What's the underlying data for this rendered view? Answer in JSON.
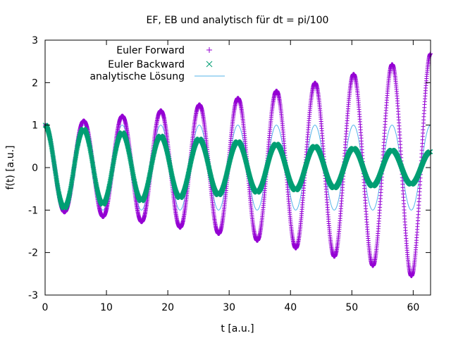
{
  "chart_data": {
    "type": "scatter",
    "title": "EF, EB und analytisch für dt = pi/100",
    "xlabel": "t [a.u.]",
    "ylabel": "f(t) [a.u.]",
    "xlim": [
      0,
      62.83
    ],
    "ylim": [
      -3,
      3
    ],
    "x_ticks": [
      0,
      10,
      20,
      30,
      40,
      50,
      60
    ],
    "x_tick_labels": [
      "0",
      "10",
      "20",
      "30",
      "40",
      "50",
      "60"
    ],
    "y_ticks": [
      -3,
      -2,
      -1,
      0,
      1,
      2,
      3
    ],
    "y_tick_labels": [
      "-3",
      "-2",
      "-1",
      "0",
      "1",
      "2",
      "3"
    ],
    "grid": false,
    "legend_position": "top-center",
    "dt": 0.0314159,
    "series": [
      {
        "name": "Euler Forward",
        "marker": "+",
        "color": "#9400d3",
        "model": "f(t)=cos(t)·(1+dt²)^(t/(2·dt))",
        "peaks": [
          {
            "t": 0,
            "f": 1.0
          },
          {
            "t": 6.28,
            "f": 1.1
          },
          {
            "t": 12.57,
            "f": 1.21
          },
          {
            "t": 18.85,
            "f": 1.34
          },
          {
            "t": 25.13,
            "f": 1.48
          },
          {
            "t": 31.42,
            "f": 1.64
          },
          {
            "t": 37.7,
            "f": 1.81
          },
          {
            "t": 43.98,
            "f": 1.99
          },
          {
            "t": 50.27,
            "f": 2.2
          },
          {
            "t": 56.55,
            "f": 2.43
          },
          {
            "t": 62.83,
            "f": 2.68
          }
        ]
      },
      {
        "name": "Euler Backward",
        "marker": "x",
        "color": "#009e73",
        "model": "f(t)=cos(t)·(1+dt²)^(-t/(2·dt))",
        "peaks": [
          {
            "t": 0,
            "f": 1.0
          },
          {
            "t": 6.28,
            "f": 0.91
          },
          {
            "t": 12.57,
            "f": 0.82
          },
          {
            "t": 18.85,
            "f": 0.74
          },
          {
            "t": 25.13,
            "f": 0.67
          },
          {
            "t": 31.42,
            "f": 0.61
          },
          {
            "t": 37.7,
            "f": 0.55
          },
          {
            "t": 43.98,
            "f": 0.5
          },
          {
            "t": 50.27,
            "f": 0.45
          },
          {
            "t": 56.55,
            "f": 0.41
          },
          {
            "t": 62.83,
            "f": 0.37
          }
        ]
      },
      {
        "name": "analytische Lösung",
        "marker": "line",
        "color": "#56b4e9",
        "model": "f(t)=cos(t)",
        "peaks": [
          {
            "t": 0,
            "f": 1.0
          },
          {
            "t": 62.83,
            "f": 1.0
          }
        ]
      }
    ]
  }
}
